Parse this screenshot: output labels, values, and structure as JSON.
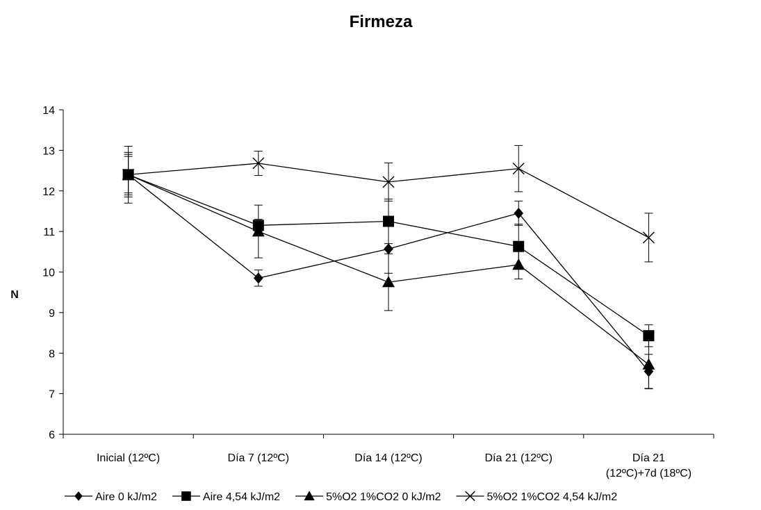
{
  "chart_data": {
    "type": "line",
    "title": "Firmeza",
    "ylabel": "N",
    "xlabel": "",
    "ylim": [
      6,
      14
    ],
    "yticks": [
      6,
      7,
      8,
      9,
      10,
      11,
      12,
      13,
      14
    ],
    "grid": false,
    "legend_position": "bottom",
    "categories": [
      [
        "Inicial (12ºC)"
      ],
      [
        "Día 7 (12ºC)"
      ],
      [
        "Día 14 (12ºC)"
      ],
      [
        "Día 21 (12ºC)"
      ],
      [
        "Día 21",
        "(12ºC)+7d (18ºC)"
      ]
    ],
    "series": [
      {
        "name": "Aire 0 kJ/m2",
        "marker": "diamond",
        "values": [
          12.4,
          9.85,
          10.57,
          11.45,
          7.55
        ],
        "errors": [
          0.55,
          0.2,
          0.6,
          0.3,
          0.42
        ]
      },
      {
        "name": "Aire 4,54 kJ/m2",
        "marker": "square",
        "values": [
          12.4,
          11.15,
          11.25,
          10.63,
          8.43
        ],
        "errors": [
          0.5,
          0.15,
          0.55,
          0.55,
          0.27
        ]
      },
      {
        "name": "5%O2 1%CO2 0 kJ/m2",
        "marker": "triangle",
        "values": [
          12.4,
          11.0,
          9.75,
          10.18,
          7.72
        ],
        "errors": [
          0.45,
          0.65,
          0.7,
          0.35,
          0.6
        ]
      },
      {
        "name": "5%O2 1%CO2 4,54 kJ/m2",
        "marker": "x",
        "values": [
          12.4,
          12.68,
          12.22,
          12.55,
          10.85
        ],
        "errors": [
          0.7,
          0.3,
          0.47,
          0.57,
          0.6
        ]
      }
    ]
  }
}
